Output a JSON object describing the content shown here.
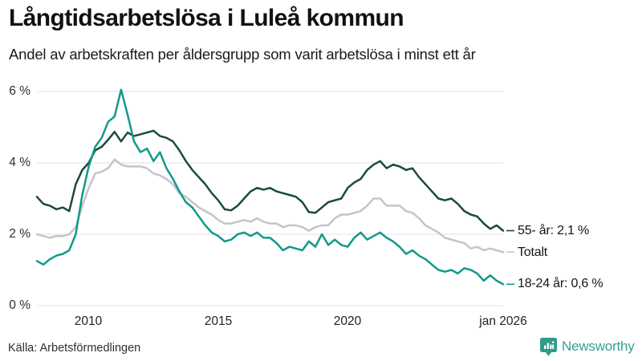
{
  "header": {
    "title": "Långtidsarbetslösa i Luleå kommun",
    "subtitle": "Andel av arbetskraften per åldersgrupp som varit arbetslösa i minst ett år"
  },
  "footer": {
    "source": "Källa: Arbetsförmedlingen",
    "brand": "Newsworthy",
    "brand_color": "#34a090"
  },
  "chart_data": {
    "type": "line",
    "title": "Långtidsarbetslösa i Luleå kommun",
    "subtitle": "Andel av arbetskraften per åldersgrupp som varit arbetslösa i minst ett år",
    "x_start": 2008.0,
    "x_step": 0.25,
    "x_end": 2026.0,
    "ylim": [
      0,
      6.3
    ],
    "grid": true,
    "grid_color": "#e7e7eb",
    "legend_position": "right-end-labels",
    "yticks": [
      {
        "value": 6,
        "label": "6 %"
      },
      {
        "value": 4,
        "label": "4 %"
      },
      {
        "value": 2,
        "label": "2 %"
      },
      {
        "value": 0,
        "label": "0 %"
      }
    ],
    "xticks": [
      {
        "value": 2010,
        "label": "2010"
      },
      {
        "value": 2015,
        "label": "2015"
      },
      {
        "value": 2020,
        "label": "2020"
      },
      {
        "value": 2026,
        "label": "jan 2026"
      }
    ],
    "series": [
      {
        "name": "55- år",
        "end_label": "55- år: 2,1 %",
        "end_value": 2.1,
        "color": "#1b4a42",
        "values": [
          3.05,
          2.85,
          2.8,
          2.7,
          2.75,
          2.65,
          3.4,
          3.8,
          4.0,
          4.35,
          4.45,
          4.65,
          4.87,
          4.6,
          4.85,
          4.75,
          4.8,
          4.85,
          4.9,
          4.75,
          4.7,
          4.6,
          4.35,
          4.05,
          3.8,
          3.6,
          3.4,
          3.15,
          2.95,
          2.7,
          2.67,
          2.8,
          3.0,
          3.2,
          3.3,
          3.25,
          3.3,
          3.2,
          3.15,
          3.1,
          3.05,
          2.9,
          2.62,
          2.6,
          2.75,
          2.9,
          2.95,
          3.0,
          3.3,
          3.45,
          3.55,
          3.8,
          3.95,
          4.05,
          3.85,
          3.95,
          3.9,
          3.8,
          3.85,
          3.6,
          3.4,
          3.2,
          3.0,
          2.95,
          3.0,
          2.85,
          2.65,
          2.55,
          2.5,
          2.3,
          2.15,
          2.25,
          2.1
        ]
      },
      {
        "name": "Totalt",
        "end_label": "Totalt",
        "end_value": 1.5,
        "color": "#c5c3cf",
        "values": [
          2.0,
          1.95,
          1.9,
          1.95,
          1.95,
          2.0,
          2.2,
          2.8,
          3.3,
          3.7,
          3.75,
          3.85,
          4.1,
          3.95,
          3.9,
          3.9,
          3.9,
          3.85,
          3.7,
          3.65,
          3.55,
          3.4,
          3.15,
          3.05,
          2.9,
          2.75,
          2.65,
          2.55,
          2.4,
          2.3,
          2.3,
          2.35,
          2.4,
          2.35,
          2.45,
          2.35,
          2.3,
          2.3,
          2.2,
          2.25,
          2.25,
          2.2,
          2.1,
          2.2,
          2.25,
          2.25,
          2.45,
          2.55,
          2.55,
          2.6,
          2.65,
          2.8,
          3.0,
          3.0,
          2.8,
          2.8,
          2.8,
          2.65,
          2.6,
          2.45,
          2.25,
          2.15,
          2.05,
          1.9,
          1.85,
          1.8,
          1.75,
          1.6,
          1.65,
          1.55,
          1.6,
          1.55,
          1.5
        ]
      },
      {
        "name": "18-24 år",
        "end_label": "18-24 år: 0,6 %",
        "end_value": 0.6,
        "color": "#12998a",
        "values": [
          1.25,
          1.15,
          1.3,
          1.4,
          1.45,
          1.55,
          2.0,
          3.1,
          3.9,
          4.45,
          4.7,
          5.15,
          5.3,
          6.05,
          5.35,
          4.6,
          4.3,
          4.4,
          4.05,
          4.3,
          3.85,
          3.55,
          3.2,
          2.9,
          2.75,
          2.5,
          2.25,
          2.05,
          1.95,
          1.8,
          1.85,
          2.0,
          2.05,
          1.95,
          2.05,
          1.9,
          1.9,
          1.75,
          1.55,
          1.65,
          1.6,
          1.55,
          1.8,
          1.65,
          2.0,
          1.7,
          1.85,
          1.7,
          1.65,
          1.9,
          2.05,
          1.85,
          1.95,
          2.05,
          1.9,
          1.8,
          1.65,
          1.45,
          1.55,
          1.4,
          1.3,
          1.15,
          1.0,
          0.95,
          1.0,
          0.9,
          1.05,
          1.0,
          0.9,
          0.7,
          0.85,
          0.7,
          0.6
        ]
      }
    ]
  }
}
